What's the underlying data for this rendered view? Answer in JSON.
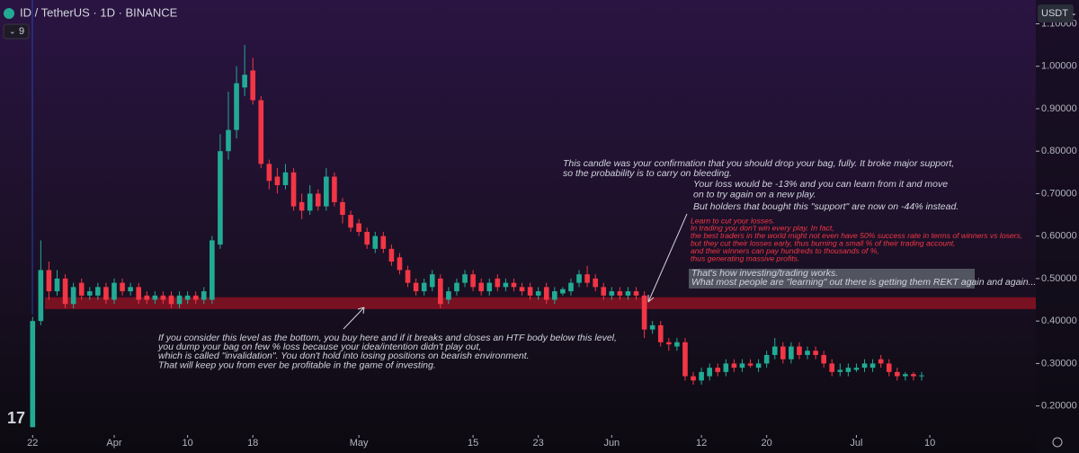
{
  "chart_data": {
    "type": "candlestick",
    "title": "ID / TetherUS · 1D · BINANCE",
    "indicator": "9",
    "currency": "USDT",
    "up_color": "#22ab94",
    "down_color": "#f23645",
    "open": [
      0.15,
      0.4,
      0.52,
      0.47,
      0.5,
      0.44,
      0.49,
      0.46,
      0.46,
      0.48,
      0.45,
      0.49,
      0.47,
      0.48,
      0.46,
      0.45,
      0.46,
      0.46,
      0.44,
      0.45,
      0.46,
      0.45,
      0.45,
      0.58,
      0.8,
      0.85,
      0.95,
      0.99,
      0.92,
      0.77,
      0.74,
      0.72,
      0.75,
      0.68,
      0.66,
      0.7,
      0.67,
      0.74,
      0.68,
      0.65,
      0.63,
      0.61,
      0.57,
      0.6,
      0.57,
      0.55,
      0.52,
      0.49,
      0.47,
      0.48,
      0.5,
      0.45,
      0.47,
      0.49,
      0.51,
      0.49,
      0.47,
      0.5,
      0.48,
      0.49,
      0.48,
      0.48,
      0.46,
      0.48,
      0.45,
      0.465,
      0.47,
      0.49,
      0.51,
      0.5,
      0.48,
      0.46,
      0.47,
      0.46,
      0.47,
      0.46,
      0.38,
      0.39,
      0.35,
      0.34,
      0.35,
      0.27,
      0.26,
      0.27,
      0.29,
      0.28,
      0.3,
      0.29,
      0.3,
      0.29,
      0.3,
      0.32,
      0.34,
      0.31,
      0.34,
      0.32,
      0.33,
      0.32,
      0.3,
      0.28,
      0.28,
      0.285,
      0.29,
      0.29,
      0.31,
      0.3,
      0.28,
      0.27,
      0.275,
      0.27
    ],
    "high": [
      0.41,
      0.59,
      0.54,
      0.52,
      0.51,
      0.49,
      0.5,
      0.48,
      0.49,
      0.49,
      0.5,
      0.5,
      0.49,
      0.49,
      0.47,
      0.47,
      0.47,
      0.47,
      0.47,
      0.47,
      0.47,
      0.48,
      0.6,
      0.84,
      0.94,
      1.0,
      1.05,
      1.02,
      0.93,
      0.78,
      0.76,
      0.77,
      0.76,
      0.7,
      0.72,
      0.71,
      0.76,
      0.75,
      0.69,
      0.66,
      0.64,
      0.62,
      0.61,
      0.61,
      0.58,
      0.56,
      0.53,
      0.5,
      0.5,
      0.52,
      0.51,
      0.48,
      0.5,
      0.52,
      0.52,
      0.5,
      0.5,
      0.51,
      0.5,
      0.5,
      0.49,
      0.49,
      0.48,
      0.49,
      0.48,
      0.48,
      0.5,
      0.52,
      0.53,
      0.51,
      0.49,
      0.48,
      0.48,
      0.48,
      0.48,
      0.47,
      0.4,
      0.4,
      0.36,
      0.36,
      0.36,
      0.28,
      0.29,
      0.3,
      0.3,
      0.31,
      0.31,
      0.31,
      0.31,
      0.31,
      0.33,
      0.36,
      0.35,
      0.35,
      0.35,
      0.34,
      0.34,
      0.33,
      0.31,
      0.3,
      0.3,
      0.3,
      0.31,
      0.31,
      0.32,
      0.31,
      0.29,
      0.28,
      0.28,
      0.28
    ],
    "low": [
      0.15,
      0.39,
      0.45,
      0.46,
      0.43,
      0.43,
      0.45,
      0.45,
      0.45,
      0.44,
      0.44,
      0.46,
      0.46,
      0.44,
      0.44,
      0.44,
      0.44,
      0.43,
      0.43,
      0.44,
      0.44,
      0.44,
      0.44,
      0.57,
      0.78,
      0.83,
      0.93,
      0.91,
      0.76,
      0.71,
      0.7,
      0.71,
      0.66,
      0.64,
      0.65,
      0.66,
      0.66,
      0.67,
      0.63,
      0.61,
      0.6,
      0.57,
      0.56,
      0.56,
      0.53,
      0.51,
      0.48,
      0.46,
      0.46,
      0.47,
      0.43,
      0.44,
      0.46,
      0.48,
      0.47,
      0.46,
      0.46,
      0.47,
      0.47,
      0.47,
      0.46,
      0.45,
      0.45,
      0.44,
      0.44,
      0.46,
      0.46,
      0.48,
      0.48,
      0.47,
      0.45,
      0.45,
      0.45,
      0.45,
      0.45,
      0.36,
      0.37,
      0.34,
      0.33,
      0.33,
      0.26,
      0.25,
      0.25,
      0.26,
      0.27,
      0.27,
      0.28,
      0.28,
      0.29,
      0.28,
      0.29,
      0.31,
      0.3,
      0.3,
      0.31,
      0.31,
      0.31,
      0.29,
      0.27,
      0.27,
      0.27,
      0.28,
      0.28,
      0.28,
      0.29,
      0.27,
      0.26,
      0.26,
      0.26,
      0.26
    ],
    "close": [
      0.4,
      0.52,
      0.47,
      0.5,
      0.44,
      0.48,
      0.46,
      0.47,
      0.48,
      0.45,
      0.49,
      0.47,
      0.48,
      0.45,
      0.45,
      0.46,
      0.45,
      0.44,
      0.46,
      0.46,
      0.45,
      0.47,
      0.59,
      0.8,
      0.85,
      0.96,
      0.98,
      0.92,
      0.77,
      0.73,
      0.72,
      0.75,
      0.67,
      0.66,
      0.7,
      0.67,
      0.74,
      0.68,
      0.65,
      0.62,
      0.61,
      0.58,
      0.6,
      0.57,
      0.54,
      0.52,
      0.49,
      0.47,
      0.49,
      0.51,
      0.44,
      0.47,
      0.49,
      0.51,
      0.48,
      0.47,
      0.49,
      0.48,
      0.49,
      0.48,
      0.47,
      0.46,
      0.47,
      0.45,
      0.47,
      0.475,
      0.49,
      0.51,
      0.49,
      0.48,
      0.46,
      0.47,
      0.46,
      0.47,
      0.46,
      0.38,
      0.39,
      0.35,
      0.345,
      0.35,
      0.27,
      0.26,
      0.28,
      0.29,
      0.28,
      0.3,
      0.29,
      0.3,
      0.295,
      0.3,
      0.32,
      0.34,
      0.31,
      0.34,
      0.32,
      0.33,
      0.32,
      0.3,
      0.28,
      0.285,
      0.29,
      0.29,
      0.3,
      0.3,
      0.3,
      0.28,
      0.27,
      0.275,
      0.27,
      0.272
    ],
    "xlim": [
      -4,
      123
    ],
    "xticks": [
      {
        "value": 0,
        "label": "22"
      },
      {
        "value": 10,
        "label": "Apr"
      },
      {
        "value": 19,
        "label": "10"
      },
      {
        "value": 27,
        "label": "18"
      },
      {
        "value": 40,
        "label": "May"
      },
      {
        "value": 54,
        "label": "15"
      },
      {
        "value": 62,
        "label": "23"
      },
      {
        "value": 71,
        "label": "Jun"
      },
      {
        "value": 82,
        "label": "12"
      },
      {
        "value": 90,
        "label": "20"
      },
      {
        "value": 101,
        "label": "Jul"
      },
      {
        "value": 110,
        "label": "10"
      }
    ],
    "ylim": [
      0.14,
      1.156
    ],
    "yticks": [
      {
        "value": 0.2,
        "label": "0.20000"
      },
      {
        "value": 0.3,
        "label": "0.30000"
      },
      {
        "value": 0.4,
        "label": "0.40000"
      },
      {
        "value": 0.5,
        "label": "0.50000"
      },
      {
        "value": 0.6,
        "label": "0.60000"
      },
      {
        "value": 0.7,
        "label": "0.70000"
      },
      {
        "value": 0.8,
        "label": "0.80000"
      },
      {
        "value": 0.9,
        "label": "0.90000"
      },
      {
        "value": 1.0,
        "label": "1.00000"
      },
      {
        "value": 1.1,
        "label": "1.10000"
      }
    ],
    "zone": [
      0.428,
      0.456
    ],
    "zone_color": "#8a1222",
    "annotations": [
      {
        "lines": [
          "If you consider this level as the bottom, you buy here and if it breaks and closes an HTF body below this level,",
          "you dump your bag on few % loss because your idea/intention didn't play out,",
          "which is called \"invalidation\". You don't hold into losing positions on bearish environment.",
          "That will keep you from ever be profitable in the game of investing."
        ]
      },
      {
        "lines": [
          "This candle was your confirmation that you should drop your bag, fully. It broke major support,",
          "so the probability is to carry on bleeding."
        ]
      },
      {
        "lines": [
          "Your loss would be -13% and you can learn from it and move",
          "on to try again on a new play."
        ]
      },
      {
        "lines": [
          "But holders that bought this \"support\" are now on -44% instead."
        ]
      },
      {
        "lines": [
          "Learn to cut your losses.",
          "In trading you don't win every play. In fact,",
          "the best traders in the world might not even have 50% success rate in terms of winners vs losers,",
          "but they cut their losses early, thus burning a small % of their trading account,",
          "and their winners can pay hundreds to thousands of %,",
          "thus generating massive profits."
        ]
      },
      {
        "lines": [
          "That's how investing/trading works.",
          "What most people are \"learning\" out there is getting them REKT again and again..."
        ]
      }
    ]
  }
}
